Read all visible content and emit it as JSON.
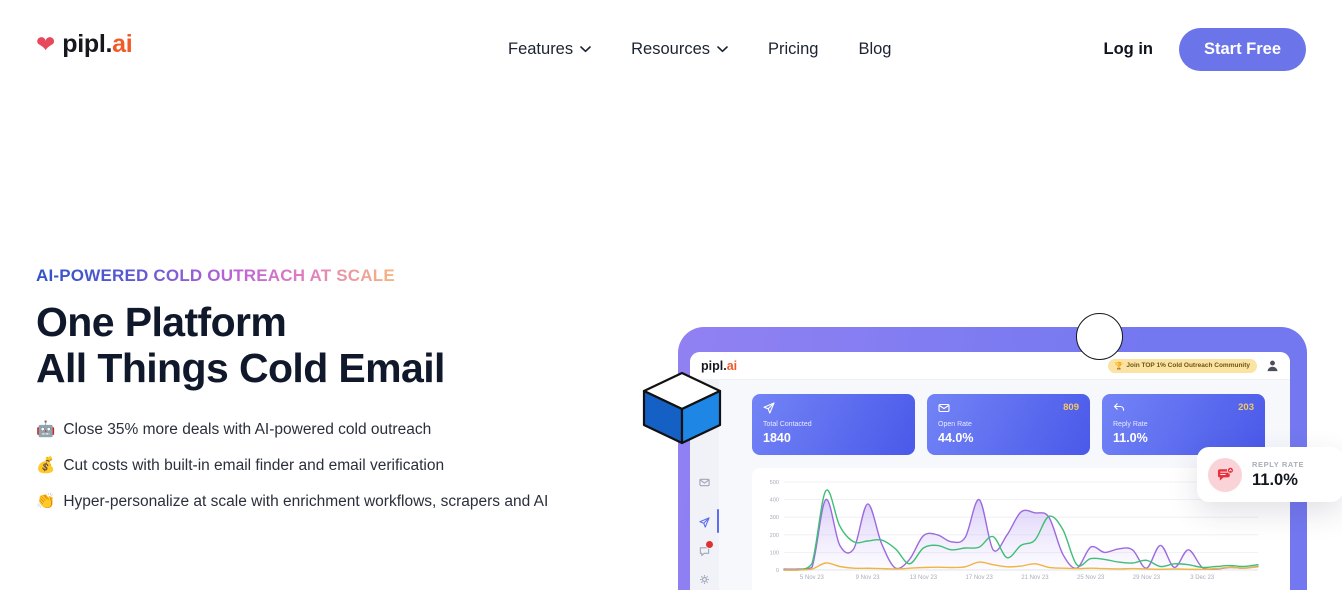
{
  "brand": {
    "heart_icon": "❤",
    "name": "pipl.",
    "tld": "ai"
  },
  "nav": {
    "features": "Features",
    "resources": "Resources",
    "pricing": "Pricing",
    "blog": "Blog",
    "login": "Log in",
    "cta": "Start Free"
  },
  "hero": {
    "eyebrow": "AI-POWERED COLD OUTREACH AT SCALE",
    "title_line1": "One Platform",
    "title_line2": "All Things Cold Email",
    "bullets": [
      {
        "icon": "🤖",
        "text": "Close 35% more deals with AI-powered cold outreach"
      },
      {
        "icon": "💰",
        "text": "Cut costs with built-in email finder and email verification"
      },
      {
        "icon": "👏",
        "text": "Hyper-personalize at scale with enrichment workflows, scrapers and AI"
      }
    ]
  },
  "dashboard": {
    "logo_name": "pipl.",
    "logo_tld": "ai",
    "badge": {
      "icon": "🏆",
      "text": "Join TOP 1% Cold Outreach Community"
    },
    "stats": [
      {
        "label": "Total Contacted",
        "value": "1840",
        "count": ""
      },
      {
        "label": "Open Rate",
        "value": "44.0%",
        "count": "809"
      },
      {
        "label": "Reply Rate",
        "value": "11.0%",
        "count": "203"
      }
    ],
    "reply_card": {
      "label": "REPLY RATE",
      "value": "11.0%"
    }
  },
  "chart_data": {
    "type": "area",
    "title": "",
    "xlabel": "",
    "ylabel": "",
    "ylim": [
      0,
      500
    ],
    "yticks": [
      0,
      100,
      200,
      300,
      400,
      500
    ],
    "x_labels": [
      "5 Nov 23",
      "9 Nov 23",
      "13 Nov 23",
      "17 Nov 23",
      "21 Nov 23",
      "25 Nov 23",
      "29 Nov 23",
      "3 Dec 23"
    ],
    "x_label_indices": [
      2,
      6,
      10,
      14,
      18,
      22,
      26,
      30
    ],
    "n_points": 35,
    "grid": true,
    "legend": "none",
    "series": [
      {
        "name": "purple-area",
        "color": "#9c6ade",
        "fill": true,
        "values": [
          5,
          5,
          15,
          400,
          140,
          120,
          375,
          150,
          10,
          60,
          195,
          200,
          160,
          185,
          400,
          115,
          200,
          330,
          325,
          300,
          90,
          10,
          130,
          100,
          120,
          115,
          10,
          140,
          15,
          115,
          15,
          5,
          15,
          10,
          20
        ]
      },
      {
        "name": "green-line",
        "color": "#3fbe76",
        "fill": false,
        "values": [
          0,
          0,
          35,
          450,
          250,
          160,
          165,
          170,
          120,
          35,
          125,
          140,
          115,
          125,
          130,
          190,
          70,
          140,
          170,
          305,
          230,
          30,
          65,
          60,
          45,
          40,
          55,
          20,
          35,
          30,
          15,
          20,
          25,
          20,
          30
        ]
      },
      {
        "name": "yellow-line",
        "color": "#f0b43f",
        "fill": false,
        "values": [
          0,
          0,
          5,
          40,
          20,
          10,
          10,
          8,
          6,
          10,
          14,
          16,
          14,
          18,
          45,
          30,
          18,
          22,
          35,
          15,
          10,
          8,
          10,
          8,
          6,
          8,
          6,
          4,
          6,
          4,
          4,
          8,
          15,
          10,
          18
        ]
      }
    ]
  }
}
